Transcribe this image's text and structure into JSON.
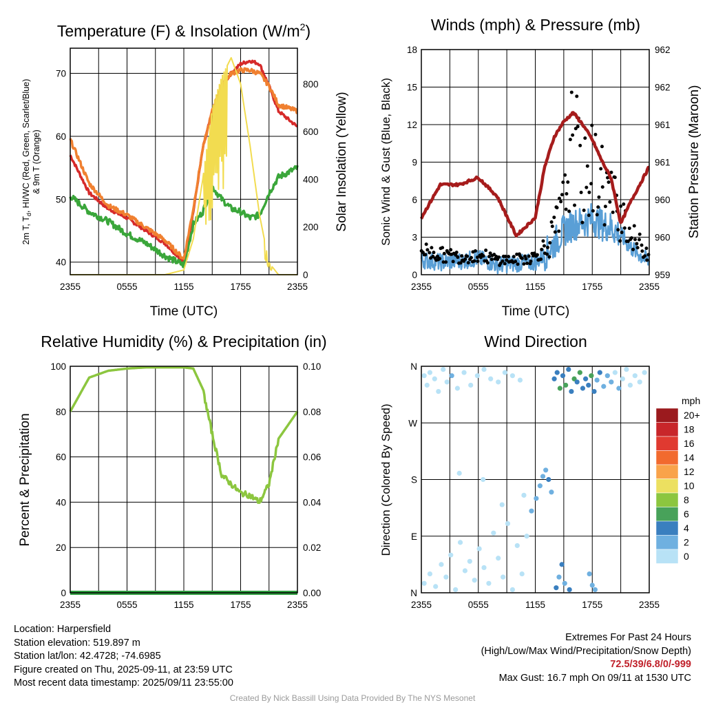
{
  "colors": {
    "t2m": "#d62a2a",
    "td": "#3aa63a",
    "hi_wc": "#ff8c28",
    "t9m": "#f08030",
    "solar": "#f2dc50",
    "wind": "#5a9fd6",
    "gust": "#000000",
    "pressure": "#a61c1c",
    "rh": "#8cc63f",
    "precip": "#2e9c3e"
  },
  "x_ticks": [
    "2355",
    "0555",
    "1155",
    "1755",
    "2355"
  ],
  "panels": {
    "temperature": {
      "title": "Temperature (F) & Insolation (W/m",
      "title_sup": "2",
      "title_end": ")",
      "ylabel_left_line1": "2m T, T",
      "ylabel_left_sub": "d",
      "ylabel_left_line1_end": ", HI/WC (Red, Green, Scarlet/Blue)",
      "ylabel_left_line2": "& 9m T (Orange)",
      "ylabel_right": "Solar Insolation (Yellow)",
      "xlabel": "Time (UTC)",
      "yticks_left": [
        "40",
        "50",
        "60",
        "70"
      ],
      "yticks_right": [
        "0",
        "200",
        "400",
        "600",
        "800"
      ]
    },
    "winds": {
      "title": "Winds (mph) & Pressure (mb)",
      "ylabel_left": "Sonic Wind & Gust (Blue, Black)",
      "ylabel_right": "Station Pressure (Maroon)",
      "xlabel": "Time (UTC)",
      "yticks_left": [
        "0",
        "3",
        "6",
        "9",
        "12",
        "15",
        "18"
      ],
      "yticks_right": [
        "959",
        "960",
        "960",
        "961",
        "961",
        "962",
        "962"
      ]
    },
    "humidity": {
      "title": "Relative Humidity (%) & Precipitation (in)",
      "ylabel_left": "Percent & Precipitation",
      "yticks_left": [
        "0",
        "20",
        "40",
        "60",
        "80",
        "100"
      ],
      "yticks_right": [
        "0.00",
        "0.02",
        "0.04",
        "0.06",
        "0.08",
        "0.10"
      ]
    },
    "direction": {
      "title": "Wind Direction",
      "ylabel_left": "Direction (Colored By Speed)",
      "yticks_left": [
        "N",
        "E",
        "S",
        "W",
        "N"
      ],
      "colorbar_title": "mph",
      "colorbar_labels": [
        "20+",
        "18",
        "16",
        "14",
        "12",
        "10",
        "8",
        "6",
        "4",
        "2",
        "0"
      ],
      "colorbar_colors": [
        "#9b1a1e",
        "#c8262a",
        "#e03a30",
        "#f26a2e",
        "#f9a34a",
        "#ece060",
        "#8cc63f",
        "#48a25a",
        "#3a7fbf",
        "#6fb0e0",
        "#b8e2f6"
      ]
    }
  },
  "info": {
    "location": "Location: Harpersfield",
    "elevation": "Station elevation: 519.897 m",
    "latlon": "Station lat/lon: 42.4728; -74.6985",
    "created": "Figure created on Thu, 2025-09-11, at 23:59 UTC",
    "recent": "Most recent data timestamp: 2025/09/11 23:55:00"
  },
  "extremes": {
    "line1": "Extremes For Past 24 Hours",
    "line2": "(High/Low/Max Wind/Precipitation/Snow Depth)",
    "values": "72.5/39/6.8/0/-999",
    "gust": "Max Gust: 16.7 mph On 09/11 at 1530 UTC"
  },
  "credit": "Created By Nick Bassill Using Data Provided By The NYS Mesonet",
  "chart_data": [
    {
      "type": "line",
      "title": "Temperature (F) & Insolation (W/m2)",
      "xlabel": "Time (UTC)",
      "x": [
        "2355",
        "0155",
        "0355",
        "0555",
        "0755",
        "0955",
        "1155",
        "1255",
        "1355",
        "1455",
        "1555",
        "1655",
        "1755",
        "1855",
        "1955",
        "2055",
        "2155",
        "2355"
      ],
      "ylim": [
        38,
        74
      ],
      "y2lim": [
        0,
        950
      ],
      "series": [
        {
          "name": "2m T (Red)",
          "axis": "left",
          "values": [
            57,
            51,
            48.5,
            47,
            45,
            43,
            40,
            48,
            58,
            64,
            68,
            70,
            71.5,
            72,
            71.5,
            68,
            64,
            61.5
          ]
        },
        {
          "name": "Td (Green)",
          "axis": "left",
          "values": [
            50.5,
            48,
            46.5,
            44.5,
            43,
            41,
            39.5,
            46,
            48,
            52,
            50,
            48.5,
            48,
            47,
            47.5,
            51,
            53.5,
            55
          ]
        },
        {
          "name": "9m T (Orange)",
          "axis": "left",
          "values": [
            59.5,
            52.5,
            49,
            47.5,
            45.5,
            43.5,
            40.5,
            48.5,
            58,
            64,
            68,
            70,
            70.5,
            70.5,
            70,
            68,
            65,
            64
          ]
        },
        {
          "name": "Solar Insolation (Yellow)",
          "axis": "right",
          "values": [
            0,
            0,
            0,
            0,
            0,
            0,
            20,
            150,
            400,
            700,
            830,
            910,
            800,
            540,
            250,
            50,
            0,
            0
          ]
        }
      ]
    },
    {
      "type": "line",
      "title": "Winds (mph) & Pressure (mb)",
      "xlabel": "Time (UTC)",
      "x": [
        "2355",
        "0155",
        "0355",
        "0555",
        "0755",
        "0955",
        "1155",
        "1255",
        "1355",
        "1455",
        "1555",
        "1655",
        "1755",
        "1855",
        "1955",
        "2055",
        "2155",
        "2355"
      ],
      "ylim": [
        0,
        18
      ],
      "y2lim": [
        959,
        962.75
      ],
      "series": [
        {
          "name": "Sonic Wind (Blue)",
          "axis": "left",
          "values": [
            1.2,
            1.0,
            1.1,
            1.3,
            0.8,
            0.9,
            1.0,
            1.6,
            2.5,
            3.5,
            4.0,
            4.2,
            4.5,
            4.0,
            3.8,
            3.2,
            2.2,
            1.0
          ]
        },
        {
          "name": "Gust (Black)",
          "axis": "left",
          "values": [
            2.5,
            2.0,
            1.8,
            2.0,
            1.5,
            1.5,
            1.8,
            2.8,
            5.0,
            8.0,
            16.7,
            10.5,
            12.5,
            11.0,
            9.0,
            7.0,
            4.0,
            2.0
          ]
        },
        {
          "name": "Station Pressure (Maroon)",
          "axis": "right",
          "values": [
            959.95,
            960.5,
            960.5,
            960.62,
            960.3,
            959.65,
            959.95,
            960.8,
            961.3,
            961.55,
            961.7,
            961.5,
            961.25,
            960.9,
            960.6,
            959.85,
            960.2,
            960.8
          ]
        }
      ]
    },
    {
      "type": "line",
      "title": "Relative Humidity (%) & Precipitation (in)",
      "x": [
        "2355",
        "0155",
        "0355",
        "0555",
        "0755",
        "0955",
        "1155",
        "1255",
        "1355",
        "1455",
        "1555",
        "1655",
        "1755",
        "1855",
        "1955",
        "2055",
        "2155",
        "2355"
      ],
      "ylim": [
        0,
        100
      ],
      "y2lim": [
        0,
        0.1
      ],
      "series": [
        {
          "name": "Relative Humidity",
          "axis": "left",
          "values": [
            80,
            95,
            98,
            99,
            99.5,
            99.5,
            99.5,
            99,
            90,
            70,
            52,
            48,
            44,
            43,
            40,
            48,
            68,
            80
          ]
        },
        {
          "name": "Precipitation",
          "axis": "right",
          "values": [
            0,
            0,
            0,
            0,
            0,
            0,
            0,
            0,
            0,
            0,
            0,
            0,
            0,
            0,
            0,
            0,
            0,
            0
          ]
        }
      ]
    },
    {
      "type": "scatter",
      "title": "Wind Direction",
      "ylabel": "Direction (Colored By Speed)",
      "x_ticks": [
        "2355",
        "0555",
        "1155",
        "1755",
        "2355"
      ],
      "y_ticks": [
        "N",
        "E",
        "S",
        "W",
        "N"
      ],
      "xlim_hours": [
        0,
        24
      ],
      "ylim_degrees": [
        0,
        360
      ],
      "points": [
        {
          "hour": 0.3,
          "dir": 345,
          "speed": 1
        },
        {
          "hour": 0.6,
          "dir": 330,
          "speed": 0.5
        },
        {
          "hour": 0.9,
          "dir": 350,
          "speed": 1
        },
        {
          "hour": 1.4,
          "dir": 340,
          "speed": 1.5
        },
        {
          "hour": 1.8,
          "dir": 320,
          "speed": 1
        },
        {
          "hour": 2.3,
          "dir": 355,
          "speed": 0.5
        },
        {
          "hour": 2.7,
          "dir": 335,
          "speed": 1
        },
        {
          "hour": 3.2,
          "dir": 345,
          "speed": 2
        },
        {
          "hour": 3.8,
          "dir": 325,
          "speed": 0.5
        },
        {
          "hour": 4.5,
          "dir": 350,
          "speed": 1
        },
        {
          "hour": 5.2,
          "dir": 330,
          "speed": 1
        },
        {
          "hour": 5.9,
          "dir": 345,
          "speed": 0.5
        },
        {
          "hour": 6.6,
          "dir": 355,
          "speed": 1
        },
        {
          "hour": 7.3,
          "dir": 340,
          "speed": 0.5
        },
        {
          "hour": 8.1,
          "dir": 335,
          "speed": 1
        },
        {
          "hour": 8.8,
          "dir": 350,
          "speed": 0.5
        },
        {
          "hour": 9.6,
          "dir": 345,
          "speed": 1
        },
        {
          "hour": 10.4,
          "dir": 338,
          "speed": 0.5
        },
        {
          "hour": 0.3,
          "dir": 15,
          "speed": 1
        },
        {
          "hour": 0.9,
          "dir": 30,
          "speed": 0.5
        },
        {
          "hour": 1.5,
          "dir": 10,
          "speed": 1
        },
        {
          "hour": 2.1,
          "dir": 45,
          "speed": 0.5
        },
        {
          "hour": 2.6,
          "dir": 25,
          "speed": 1
        },
        {
          "hour": 3.1,
          "dir": 60,
          "speed": 0.5
        },
        {
          "hour": 3.6,
          "dir": 5,
          "speed": 1
        },
        {
          "hour": 4.1,
          "dir": 80,
          "speed": 0.5
        },
        {
          "hour": 4.6,
          "dir": 35,
          "speed": 1
        },
        {
          "hour": 5.1,
          "dir": 50,
          "speed": 0.5
        },
        {
          "hour": 5.6,
          "dir": 20,
          "speed": 1
        },
        {
          "hour": 6.1,
          "dir": 70,
          "speed": 1
        },
        {
          "hour": 6.6,
          "dir": 40,
          "speed": 0.5
        },
        {
          "hour": 7.1,
          "dir": 15,
          "speed": 1
        },
        {
          "hour": 7.6,
          "dir": 95,
          "speed": 0.5
        },
        {
          "hour": 8.1,
          "dir": 55,
          "speed": 1
        },
        {
          "hour": 8.6,
          "dir": 25,
          "speed": 0.5
        },
        {
          "hour": 9.1,
          "dir": 110,
          "speed": 1
        },
        {
          "hour": 9.6,
          "dir": 5,
          "speed": 0.5
        },
        {
          "hour": 10.1,
          "dir": 75,
          "speed": 1
        },
        {
          "hour": 10.6,
          "dir": 30,
          "speed": 1
        },
        {
          "hour": 11.1,
          "dir": 90,
          "speed": 1.5
        },
        {
          "hour": 11.6,
          "dir": 130,
          "speed": 2
        },
        {
          "hour": 12.1,
          "dir": 150,
          "speed": 2.5
        },
        {
          "hour": 12.5,
          "dir": 170,
          "speed": 3
        },
        {
          "hour": 12.8,
          "dir": 185,
          "speed": 3.5
        },
        {
          "hour": 13.1,
          "dir": 195,
          "speed": 3
        },
        {
          "hour": 13.4,
          "dir": 180,
          "speed": 4
        },
        {
          "hour": 13.7,
          "dir": 160,
          "speed": 2.5
        },
        {
          "hour": 4.0,
          "dir": 190,
          "speed": 0.5
        },
        {
          "hour": 6.5,
          "dir": 180,
          "speed": 0.5
        },
        {
          "hour": 8.5,
          "dir": 140,
          "speed": 0.5
        },
        {
          "hour": 10.8,
          "dir": 155,
          "speed": 1
        },
        {
          "hour": 14.0,
          "dir": 340,
          "speed": 4
        },
        {
          "hour": 14.3,
          "dir": 350,
          "speed": 5
        },
        {
          "hour": 14.6,
          "dir": 325,
          "speed": 6
        },
        {
          "hour": 14.9,
          "dir": 345,
          "speed": 4
        },
        {
          "hour": 15.2,
          "dir": 330,
          "speed": 7
        },
        {
          "hour": 15.5,
          "dir": 355,
          "speed": 5
        },
        {
          "hour": 15.8,
          "dir": 320,
          "speed": 4
        },
        {
          "hour": 16.1,
          "dir": 340,
          "speed": 6
        },
        {
          "hour": 16.4,
          "dir": 335,
          "speed": 4.5
        },
        {
          "hour": 16.7,
          "dir": 350,
          "speed": 7
        },
        {
          "hour": 17.0,
          "dir": 325,
          "speed": 4
        },
        {
          "hour": 17.3,
          "dir": 340,
          "speed": 5.5
        },
        {
          "hour": 17.6,
          "dir": 330,
          "speed": 4
        },
        {
          "hour": 17.9,
          "dir": 345,
          "speed": 6
        },
        {
          "hour": 18.2,
          "dir": 320,
          "speed": 4
        },
        {
          "hour": 18.5,
          "dir": 338,
          "speed": 3.5
        },
        {
          "hour": 18.8,
          "dir": 350,
          "speed": 4
        },
        {
          "hour": 19.2,
          "dir": 328,
          "speed": 3
        },
        {
          "hour": 19.6,
          "dir": 345,
          "speed": 3.5
        },
        {
          "hour": 20.0,
          "dir": 335,
          "speed": 2
        },
        {
          "hour": 20.4,
          "dir": 350,
          "speed": 1.5
        },
        {
          "hour": 20.8,
          "dir": 325,
          "speed": 2
        },
        {
          "hour": 21.2,
          "dir": 340,
          "speed": 1
        },
        {
          "hour": 21.6,
          "dir": 355,
          "speed": 1.5
        },
        {
          "hour": 22.0,
          "dir": 330,
          "speed": 1
        },
        {
          "hour": 22.5,
          "dir": 345,
          "speed": 0.5
        },
        {
          "hour": 23.0,
          "dir": 335,
          "speed": 1
        },
        {
          "hour": 23.5,
          "dir": 350,
          "speed": 0.5
        },
        {
          "hour": 14.2,
          "dir": 8,
          "speed": 4
        },
        {
          "hour": 14.5,
          "dir": 25,
          "speed": 3
        },
        {
          "hour": 14.8,
          "dir": 45,
          "speed": 5
        },
        {
          "hour": 15.1,
          "dir": 15,
          "speed": 3.5
        },
        {
          "hour": 15.6,
          "dir": 5,
          "speed": 4
        },
        {
          "hour": 17.7,
          "dir": 30,
          "speed": 2.5
        },
        {
          "hour": 18.0,
          "dir": 12,
          "speed": 3
        },
        {
          "hour": 18.3,
          "dir": 5,
          "speed": 2.5
        }
      ]
    }
  ]
}
